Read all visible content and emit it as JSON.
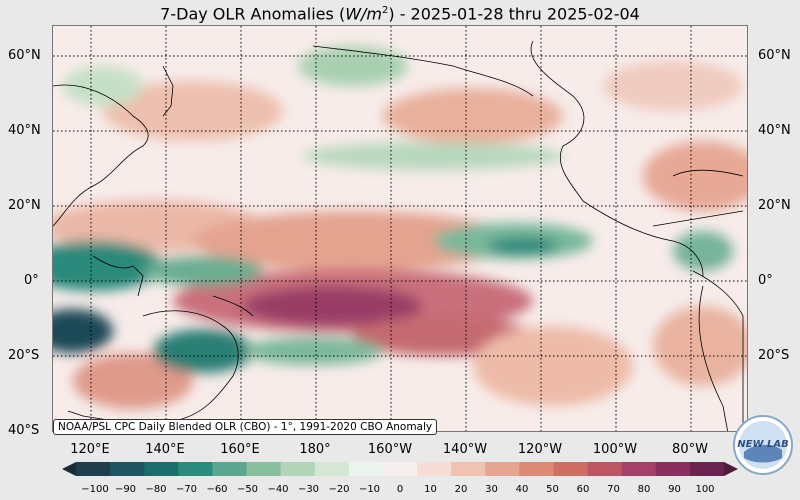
{
  "title": {
    "prefix": "7-Day OLR Anomalies (",
    "unit_base": "W/m",
    "unit_exp": "2",
    "suffix": ") - 2025-01-28 thru 2025-02-04"
  },
  "map": {
    "lat_labels": [
      "60°N",
      "40°N",
      "20°N",
      "0°",
      "20°S",
      "40°S"
    ],
    "lon_labels": [
      "120°E",
      "140°E",
      "160°E",
      "180°",
      "160°W",
      "140°W",
      "120°W",
      "100°W",
      "80°W"
    ],
    "credit": "NOAA/PSL CPC Daily Blended OLR (CBO) - 1°, 1991-2020 CBO Anomaly"
  },
  "colorbar": {
    "ticks": [
      "−100",
      "−90",
      "−80",
      "−70",
      "−60",
      "−50",
      "−40",
      "−30",
      "−20",
      "−10",
      "0",
      "10",
      "20",
      "30",
      "40",
      "50",
      "60",
      "70",
      "80",
      "90",
      "100"
    ],
    "colors": [
      "#1a2b3a",
      "#203e4c",
      "#1f5560",
      "#1a6e6c",
      "#2b8c7e",
      "#5aa78f",
      "#88c09f",
      "#b3d6b9",
      "#d4e6d4",
      "#ecf3ee",
      "#f7efee",
      "#f6ddd6",
      "#efc2b3",
      "#e6a590",
      "#dc8a74",
      "#cf6f63",
      "#bd5662",
      "#a54169",
      "#89305f",
      "#6b234f",
      "#4f1a3c"
    ]
  },
  "logo": {
    "text": "NEW LAB"
  }
}
